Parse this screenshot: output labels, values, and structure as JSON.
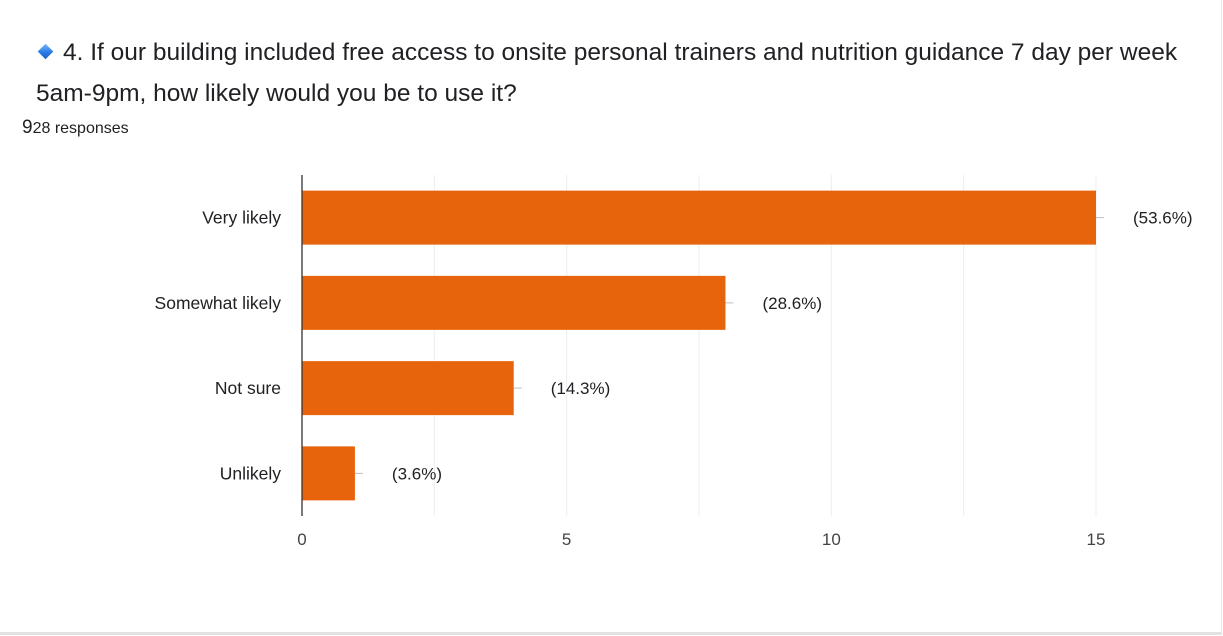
{
  "question": {
    "icon": "blue-diamond-icon",
    "text": "4. If our building included free access to onsite personal trainers and nutrition guidance 7 day per week 5am-9pm, how likely would you be to use it?"
  },
  "responses": {
    "first_char": "9",
    "rest": "28 responses"
  },
  "chart_data": {
    "type": "bar",
    "orientation": "horizontal",
    "categories": [
      "Very likely",
      "Somewhat likely",
      "Not sure",
      "Unlikely"
    ],
    "values": [
      15,
      8,
      4,
      1
    ],
    "data_labels": [
      "(53.6%)",
      "(28.6%)",
      "(14.3%)",
      "(3.6%)"
    ],
    "xlim": [
      0,
      15
    ],
    "x_ticks": [
      0,
      5,
      10,
      15
    ],
    "grid": true,
    "bar_color": "#e8640c",
    "title": "",
    "xlabel": "",
    "ylabel": ""
  }
}
